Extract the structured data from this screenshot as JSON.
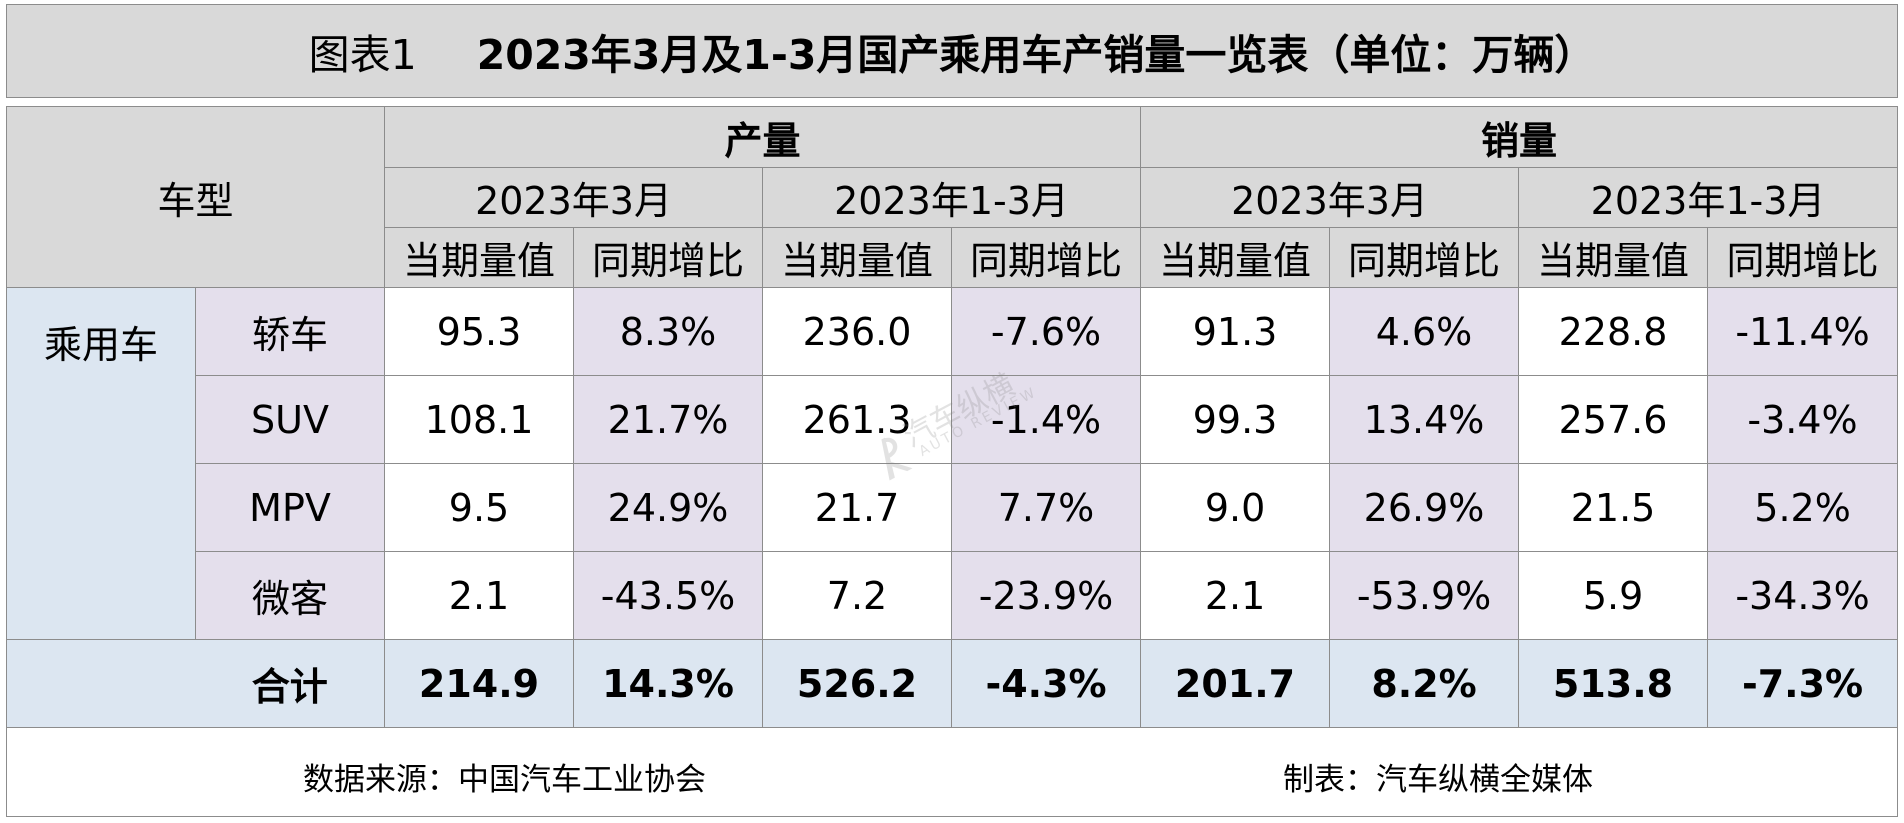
{
  "title": {
    "label": "图表1",
    "main": "2023年3月及1-3月国产乘用车产销量一览表（单位：万辆）"
  },
  "header": {
    "vehicle_type": "车型",
    "production": "产量",
    "sales": "销量",
    "periods": [
      "2023年3月",
      "2023年1-3月",
      "2023年3月",
      "2023年1-3月"
    ],
    "metrics": [
      "当期量值",
      "同期增比",
      "当期量值",
      "同期增比",
      "当期量值",
      "同期增比",
      "当期量值",
      "同期增比"
    ]
  },
  "category": "乘用车",
  "rows": [
    {
      "name": "轿车",
      "values": [
        "95.3",
        "8.3%",
        "236.0",
        "-7.6%",
        "91.3",
        "4.6%",
        "228.8",
        "-11.4%"
      ]
    },
    {
      "name": "SUV",
      "values": [
        "108.1",
        "21.7%",
        "261.3",
        "-1.4%",
        "99.3",
        "13.4%",
        "257.6",
        "-3.4%"
      ]
    },
    {
      "name": "MPV",
      "values": [
        "9.5",
        "24.9%",
        "21.7",
        "7.7%",
        "9.0",
        "26.9%",
        "21.5",
        "5.2%"
      ]
    },
    {
      "name": "微客",
      "values": [
        "2.1",
        "-43.5%",
        "7.2",
        "-23.9%",
        "2.1",
        "-53.9%",
        "5.9",
        "-34.3%"
      ]
    }
  ],
  "total": {
    "name": "合计",
    "values": [
      "214.9",
      "14.3%",
      "526.2",
      "-4.3%",
      "201.7",
      "8.2%",
      "513.8",
      "-7.3%"
    ]
  },
  "footer": {
    "source": "数据来源：中国汽车工业协会",
    "maker": "制表：汽车纵横全媒体"
  },
  "watermark": {
    "text": "汽车纵横",
    "sub": "AUTO REVIEW"
  },
  "colors": {
    "header_gray": "#d9d9d9",
    "light_blue": "#dce6f1",
    "lavender": "#e4dfec",
    "border": "#8c8c8c"
  }
}
